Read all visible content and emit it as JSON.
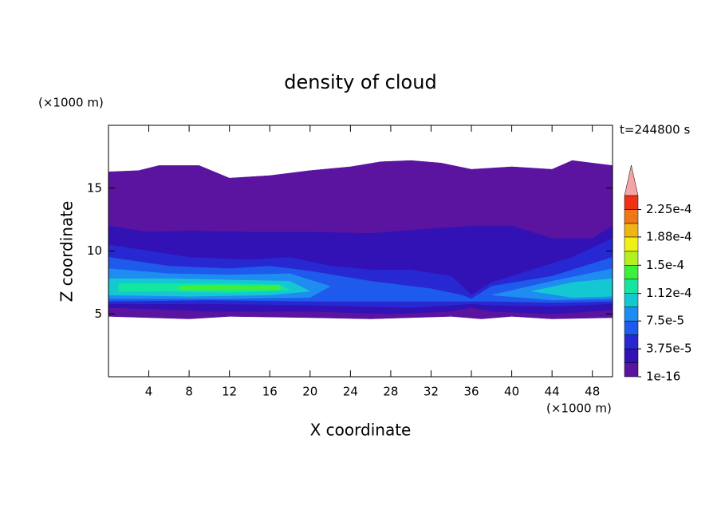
{
  "chart_data": {
    "type": "contour",
    "title": "density of cloud",
    "x_label": "X coordinate",
    "y_label": "Z coordinate",
    "x_unit_label": "(×1000 m)",
    "y_unit_label": "(×1000 m)",
    "time_label": "t=244800 s",
    "xlim": [
      0,
      50
    ],
    "ylim": [
      0,
      20
    ],
    "xticks": [
      4,
      8,
      12,
      16,
      20,
      24,
      28,
      32,
      36,
      40,
      44,
      48
    ],
    "yticks": [
      5,
      10,
      15
    ],
    "clim": [
      1e-16,
      0.00024375
    ],
    "extend": "max",
    "extend_color": "#f4a4a4",
    "colorbar_ticks": [
      {
        "value": 1e-16,
        "label": "1e-16"
      },
      {
        "value": 3.75e-05,
        "label": "3.75e-5"
      },
      {
        "value": 7.5e-05,
        "label": "7.5e-5"
      },
      {
        "value": 0.000112,
        "label": "1.12e-4"
      },
      {
        "value": 0.00015,
        "label": "1.5e-4"
      },
      {
        "value": 0.000188,
        "label": "1.88e-4"
      },
      {
        "value": 0.000225,
        "label": "2.25e-4"
      }
    ],
    "colorbar_levels": [
      1e-16,
      1.875e-05,
      3.75e-05,
      5.625e-05,
      7.5e-05,
      9.375e-05,
      0.000112,
      0.00013125,
      0.00015,
      0.00016875,
      0.000188,
      0.00020625,
      0.000225
    ],
    "colorbar_colors": [
      "#5a14a0",
      "#3212b4",
      "#2828d2",
      "#1e5aeb",
      "#1e8cf0",
      "#14c8d2",
      "#14e6a0",
      "#3cf03c",
      "#b4f01e",
      "#f0f014",
      "#f0b414",
      "#f07814",
      "#f03214"
    ],
    "regions": [
      {
        "level": 1e-16,
        "points": [
          [
            0,
            4.8
          ],
          [
            0,
            16.3
          ],
          [
            3,
            16.4
          ],
          [
            5,
            16.8
          ],
          [
            9,
            16.8
          ],
          [
            12,
            15.8
          ],
          [
            16,
            16
          ],
          [
            20,
            16.4
          ],
          [
            24,
            16.7
          ],
          [
            27,
            17.1
          ],
          [
            30,
            17.2
          ],
          [
            33,
            17
          ],
          [
            36,
            16.5
          ],
          [
            40,
            16.7
          ],
          [
            44,
            16.5
          ],
          [
            46,
            17.2
          ],
          [
            48,
            17
          ],
          [
            50,
            16.8
          ],
          [
            50,
            4.7
          ],
          [
            44,
            4.6
          ],
          [
            40,
            4.8
          ],
          [
            37,
            4.6
          ],
          [
            34,
            4.8
          ],
          [
            30,
            4.7
          ],
          [
            26,
            4.6
          ],
          [
            20,
            4.7
          ],
          [
            12,
            4.8
          ],
          [
            8,
            4.6
          ],
          [
            4,
            4.7
          ]
        ]
      },
      {
        "level": 1.875e-05,
        "points": [
          [
            0,
            5.5
          ],
          [
            0,
            12
          ],
          [
            4,
            11.5
          ],
          [
            8,
            11.6
          ],
          [
            14,
            11.5
          ],
          [
            20,
            11.5
          ],
          [
            26,
            11.4
          ],
          [
            31,
            11.7
          ],
          [
            36,
            12
          ],
          [
            40,
            12
          ],
          [
            44,
            11
          ],
          [
            48,
            11
          ],
          [
            50,
            12
          ],
          [
            50,
            5.3
          ],
          [
            44,
            5
          ],
          [
            38,
            5.2
          ],
          [
            36,
            5.5
          ],
          [
            34,
            5.2
          ],
          [
            28,
            5
          ],
          [
            20,
            5.2
          ],
          [
            10,
            5.2
          ],
          [
            4,
            5.4
          ]
        ]
      },
      {
        "level": 3.75e-05,
        "points": [
          [
            0,
            5.8
          ],
          [
            0,
            10.5
          ],
          [
            4,
            10
          ],
          [
            8,
            9.5
          ],
          [
            14,
            9.3
          ],
          [
            18,
            9.5
          ],
          [
            22,
            8.8
          ],
          [
            26,
            8.5
          ],
          [
            30,
            8.5
          ],
          [
            34,
            8
          ],
          [
            36,
            6.5
          ],
          [
            38,
            7.5
          ],
          [
            42,
            8.5
          ],
          [
            46,
            9.5
          ],
          [
            50,
            11
          ],
          [
            50,
            5.8
          ],
          [
            44,
            5.6
          ],
          [
            38,
            5.7
          ],
          [
            36,
            5.8
          ],
          [
            30,
            5.5
          ],
          [
            20,
            5.7
          ],
          [
            10,
            5.8
          ],
          [
            4,
            5.8
          ]
        ]
      },
      {
        "level": 5.625e-05,
        "points": [
          [
            0,
            6
          ],
          [
            0,
            9.5
          ],
          [
            6,
            8.8
          ],
          [
            12,
            8.6
          ],
          [
            16,
            8.8
          ],
          [
            20,
            8.4
          ],
          [
            26,
            7.6
          ],
          [
            32,
            7
          ],
          [
            35,
            6.5
          ],
          [
            36,
            6.2
          ],
          [
            38,
            7.2
          ],
          [
            44,
            8
          ],
          [
            50,
            9.5
          ],
          [
            50,
            6
          ],
          [
            44,
            5.9
          ],
          [
            38,
            6
          ],
          [
            30,
            6
          ],
          [
            20,
            6
          ],
          [
            10,
            6.1
          ]
        ]
      },
      {
        "level": 7.5e-05,
        "points": [
          [
            0,
            6.2
          ],
          [
            0,
            8.6
          ],
          [
            6,
            8.2
          ],
          [
            12,
            8.1
          ],
          [
            18,
            8.2
          ],
          [
            22,
            7.2
          ],
          [
            20,
            6.3
          ],
          [
            12,
            6.2
          ]
        ]
      },
      {
        "level": 7.5e-05,
        "points": [
          [
            38,
            6.5
          ],
          [
            44,
            7.6
          ],
          [
            50,
            8.6
          ],
          [
            50,
            6.2
          ],
          [
            44,
            6.1
          ]
        ]
      },
      {
        "level": 9.375e-05,
        "points": [
          [
            0,
            6.5
          ],
          [
            0,
            7.8
          ],
          [
            6,
            7.8
          ],
          [
            12,
            7.7
          ],
          [
            18,
            7.6
          ],
          [
            20,
            6.8
          ],
          [
            16,
            6.5
          ],
          [
            8,
            6.4
          ]
        ]
      },
      {
        "level": 9.375e-05,
        "points": [
          [
            42,
            6.8
          ],
          [
            46,
            7.5
          ],
          [
            50,
            7.8
          ],
          [
            50,
            6.4
          ],
          [
            46,
            6.3
          ]
        ]
      },
      {
        "level": 0.000112,
        "points": [
          [
            1,
            6.8
          ],
          [
            1,
            7.4
          ],
          [
            6,
            7.4
          ],
          [
            12,
            7.4
          ],
          [
            17,
            7.3
          ],
          [
            18,
            6.9
          ],
          [
            12,
            6.7
          ],
          [
            6,
            6.8
          ]
        ]
      },
      {
        "level": 0.00013125,
        "points": [
          [
            7,
            6.9
          ],
          [
            7,
            7.2
          ],
          [
            11,
            7.3
          ],
          [
            14,
            7.2
          ],
          [
            17,
            7.3
          ],
          [
            17,
            6.9
          ],
          [
            12,
            6.9
          ]
        ]
      }
    ]
  }
}
